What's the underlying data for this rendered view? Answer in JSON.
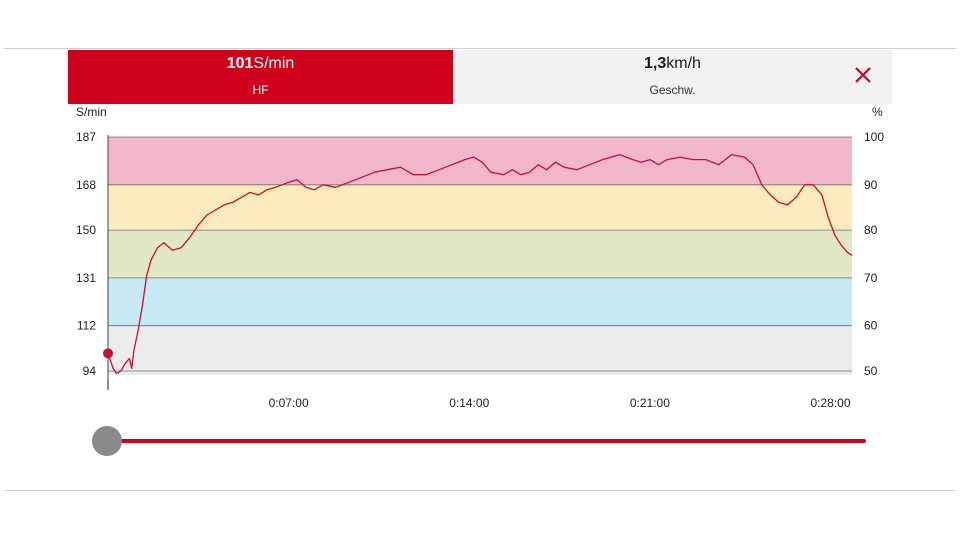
{
  "header": {
    "hf": {
      "value": "101",
      "unit": "S/min",
      "label": "HF",
      "active": true
    },
    "speed": {
      "value": "1,3",
      "unit": "km/h",
      "label": "Geschw."
    },
    "close_icon": "close-icon"
  },
  "chart_data": {
    "type": "line",
    "title": "",
    "left_axis_unit": "S/min",
    "right_axis_unit": "%",
    "y_left_ticks": [
      "187",
      "168",
      "150",
      "131",
      "112",
      "94"
    ],
    "y_right_ticks": [
      "100",
      "90",
      "80",
      "70",
      "60",
      "50"
    ],
    "x_tick_labels": [
      "0:07:00",
      "0:14:00",
      "0:21:00",
      "0:28:00"
    ],
    "x_tick_seconds": [
      420,
      840,
      1260,
      1680
    ],
    "xlim_seconds": [
      0,
      1730
    ],
    "ylim": [
      93,
      187.5
    ],
    "zones": [
      {
        "from": 168,
        "to": 187,
        "color": "#f2b7cb"
      },
      {
        "from": 150,
        "to": 168,
        "color": "#fbebbd"
      },
      {
        "from": 131,
        "to": 150,
        "color": "#e0e9c3"
      },
      {
        "from": 112,
        "to": 131,
        "color": "#c6e9f3"
      },
      {
        "from": 93,
        "to": 112,
        "color": "#ececec"
      }
    ],
    "line_color": "#c8102e",
    "current_marker": {
      "x": 0,
      "y": 101
    },
    "series": [
      {
        "x": [
          0,
          12,
          20,
          30,
          40,
          50,
          55,
          60,
          70,
          80,
          90,
          100,
          115,
          130,
          150,
          170,
          190,
          210,
          230,
          250,
          270,
          290,
          310,
          330,
          350,
          370,
          390,
          420,
          440,
          460,
          480,
          500,
          530,
          560,
          590,
          620,
          650,
          680,
          710,
          740,
          770,
          800,
          830,
          850,
          870,
          890,
          920,
          940,
          960,
          980,
          1000,
          1020,
          1040,
          1060,
          1090,
          1120,
          1150,
          1170,
          1190,
          1220,
          1240,
          1260,
          1280,
          1300,
          1330,
          1360,
          1390,
          1420,
          1450,
          1480,
          1500,
          1520,
          1540,
          1560,
          1580,
          1600,
          1620,
          1640,
          1660,
          1675,
          1690,
          1705,
          1720,
          1730
        ],
        "y": [
          101,
          95,
          93,
          94,
          97,
          99,
          95,
          102,
          110,
          120,
          132,
          138,
          143,
          145,
          142,
          143,
          147,
          152,
          156,
          158,
          160,
          161,
          163,
          165,
          164,
          166,
          167,
          169,
          170,
          167,
          166,
          168,
          167,
          169,
          171,
          173,
          174,
          175,
          172,
          172,
          174,
          176,
          178,
          179,
          177,
          173,
          172,
          174,
          172,
          173,
          176,
          174,
          177,
          175,
          174,
          176,
          178,
          179,
          180,
          178,
          177,
          178,
          176,
          178,
          179,
          178,
          178,
          176,
          180,
          179,
          176,
          168,
          164,
          161,
          160,
          163,
          168,
          168,
          164,
          155,
          148,
          144,
          141,
          140
        ]
      }
    ]
  }
}
